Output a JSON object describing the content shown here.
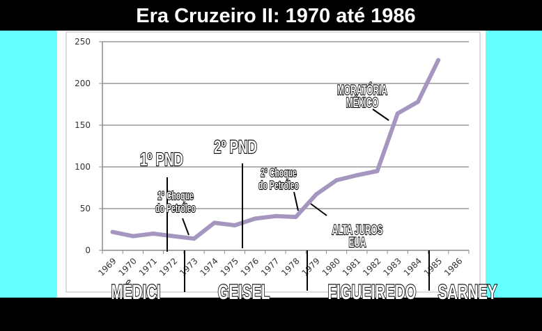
{
  "title": "Era Cruzeiro II: 1970 até 1986",
  "colors": {
    "line": "#a596c0",
    "background_side": "#66ffff",
    "frame": "#000000"
  },
  "chart_data": {
    "type": "line",
    "title": "Era Cruzeiro II: 1970 até 1986",
    "xlabel": "",
    "ylabel": "",
    "categories": [
      "1969",
      "1970",
      "1971",
      "1972",
      "1973",
      "1974",
      "1975",
      "1976",
      "1977",
      "1978",
      "1979",
      "1980",
      "1981",
      "1982",
      "1983",
      "1984",
      "1985",
      "1986"
    ],
    "series": [
      {
        "name": "",
        "values": [
          22,
          17,
          20,
          17,
          14,
          33,
          30,
          38,
          41,
          40,
          67,
          84,
          90,
          95,
          164,
          178,
          228,
          null
        ]
      }
    ],
    "ylim": [
      0,
      250
    ],
    "yticks": [
      "0",
      "50",
      "100",
      "150",
      "200",
      "250"
    ],
    "grid": true,
    "annotations": {
      "pnd1": "1º PND",
      "pnd2": "2º PND",
      "choque1_a": "1º Choque",
      "choque1_b": "do Petróleo",
      "choque2_a": "2º Choque",
      "choque2_b": "do Petróleo",
      "juros_a": "ALTA JUROS",
      "juros_b": "EUA",
      "moratoria_a": "MORATÓRIA",
      "moratoria_b": "MÉXICO"
    },
    "presidents": [
      "MÉDICI",
      "GEISEL",
      "FIGUEIREDO",
      "SARNEY"
    ]
  }
}
